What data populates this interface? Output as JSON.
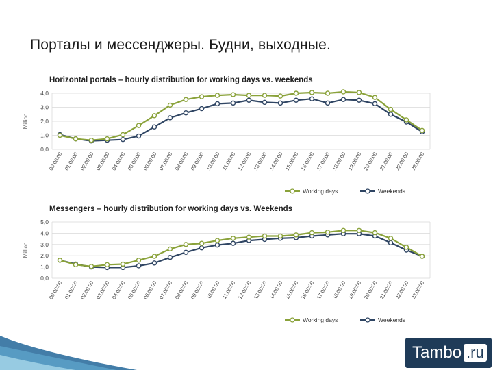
{
  "slide": {
    "title": "Порталы и мессенджеры. Будни, выходные.",
    "logo_main": "Tambo",
    "logo_suffix": ".ru"
  },
  "colors": {
    "working": "#8aa23a",
    "weekends": "#2f4563",
    "grid": "#d9d9d9",
    "accent_blue": "#2f6f9f"
  },
  "chart_data": [
    {
      "type": "line",
      "title": "Horizontal portals – hourly distribution for working days vs. weekends",
      "ylabel": "Million",
      "xlabel": "",
      "ylim": [
        0,
        4
      ],
      "yticks": [
        "0,0",
        "1,0",
        "2,0",
        "3,0",
        "4,0"
      ],
      "grid": true,
      "legend": "bottom",
      "categories": [
        "00:00:00",
        "01:00:00",
        "02:00:00",
        "03:00:00",
        "04:00:00",
        "05:00:00",
        "06:00:00",
        "07:00:00",
        "08:00:00",
        "09:00:00",
        "10:00:00",
        "11:00:00",
        "12:00:00",
        "13:00:00",
        "14:00:00",
        "15:00:00",
        "16:00:00",
        "17:00:00",
        "18:00:00",
        "19:00:00",
        "20:00:00",
        "21:00:00",
        "22:00:00",
        "23:00:00"
      ],
      "series": [
        {
          "name": "Working days",
          "values": [
            1.0,
            0.75,
            0.65,
            0.75,
            1.05,
            1.7,
            2.4,
            3.15,
            3.55,
            3.75,
            3.85,
            3.9,
            3.85,
            3.85,
            3.8,
            4.0,
            4.05,
            4.0,
            4.1,
            4.05,
            3.7,
            2.85,
            2.1,
            1.35
          ]
        },
        {
          "name": "Weekends",
          "values": [
            1.05,
            0.75,
            0.6,
            0.65,
            0.7,
            0.95,
            1.6,
            2.25,
            2.6,
            2.9,
            3.25,
            3.3,
            3.5,
            3.35,
            3.3,
            3.5,
            3.6,
            3.3,
            3.55,
            3.5,
            3.25,
            2.5,
            1.95,
            1.25
          ]
        }
      ]
    },
    {
      "type": "line",
      "title": "Messengers – hourly distribution for working days vs. Weekends",
      "ylabel": "Million",
      "xlabel": "",
      "ylim": [
        0,
        5
      ],
      "yticks": [
        "0,0",
        "1,0",
        "2,0",
        "3,0",
        "4,0",
        "5,0"
      ],
      "grid": true,
      "legend": "bottom",
      "categories": [
        "00:00:00",
        "01:00:00",
        "02:00:00",
        "03:00:00",
        "04:00:00",
        "05:00:00",
        "06:00:00",
        "07:00:00",
        "08:00:00",
        "09:00:00",
        "10:00:00",
        "11:00:00",
        "12:00:00",
        "13:00:00",
        "14:00:00",
        "15:00:00",
        "16:00:00",
        "17:00:00",
        "18:00:00",
        "19:00:00",
        "20:00:00",
        "21:00:00",
        "22:00:00",
        "23:00:00"
      ],
      "series": [
        {
          "name": "Working days",
          "values": [
            1.6,
            1.2,
            1.05,
            1.2,
            1.25,
            1.6,
            1.95,
            2.6,
            3.0,
            3.1,
            3.35,
            3.55,
            3.65,
            3.75,
            3.75,
            3.85,
            4.05,
            4.1,
            4.25,
            4.25,
            4.05,
            3.55,
            2.75,
            1.95
          ]
        },
        {
          "name": "Weekends",
          "values": [
            1.6,
            1.25,
            1.0,
            0.95,
            0.95,
            1.1,
            1.35,
            1.85,
            2.3,
            2.7,
            2.95,
            3.1,
            3.35,
            3.45,
            3.55,
            3.6,
            3.75,
            3.85,
            3.95,
            3.95,
            3.75,
            3.15,
            2.5,
            1.95
          ]
        }
      ]
    }
  ]
}
